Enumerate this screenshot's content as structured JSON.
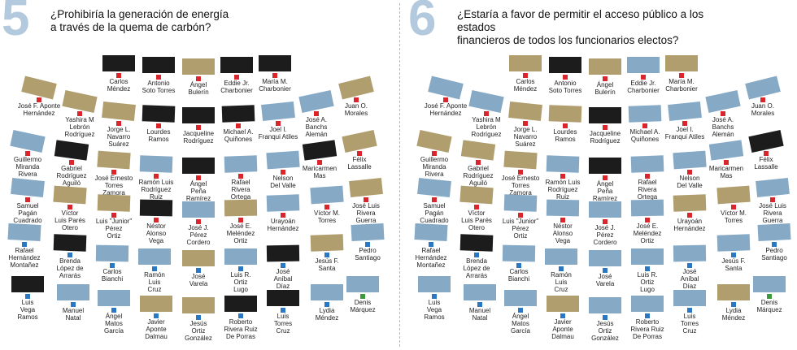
{
  "colors": {
    "favor": "#b09e6e",
    "contra": "#1c1c1c",
    "indeciso": "#86a9c6",
    "dot_ppd": "#2a78c4",
    "dot_pnp": "#d8262c",
    "dot_pip": "#3e9a3a",
    "question_number": "#b3c9dd"
  },
  "legislators": [
    {
      "name": "Carlos\nMéndez",
      "party": "pnp"
    },
    {
      "name": "Antonio\nSoto Torres",
      "party": "pnp"
    },
    {
      "name": "Ángel\nBulerín",
      "party": "pnp"
    },
    {
      "name": "Eddie Jr.\nCharbonier",
      "party": "pnp"
    },
    {
      "name": "María M.\nCharbonier",
      "party": "pnp"
    },
    {
      "name": "José F. Aponte\nHernández",
      "party": "pnp"
    },
    {
      "name": "Yashira M\nLebrón\nRodríguez",
      "party": "pnp"
    },
    {
      "name": "Jorge L.\nNavarro\nSuárez",
      "party": "pnp"
    },
    {
      "name": "Lourdes\nRamos",
      "party": "pnp"
    },
    {
      "name": "Jacqueline\nRodríguez",
      "party": "pnp"
    },
    {
      "name": "Michael A.\nQuiñones",
      "party": "pnp"
    },
    {
      "name": "Joel I.\nFranqui Atiles",
      "party": "pnp"
    },
    {
      "name": "José A.\nBanchs\nAlemán",
      "party": "pnp"
    },
    {
      "name": "Juan O.\nMorales",
      "party": "pnp"
    },
    {
      "name": "Guillermo\nMiranda\nRivera",
      "party": "pnp"
    },
    {
      "name": "Gabriel\nRodríguez\nAguiló",
      "party": "pnp"
    },
    {
      "name": "José Ernesto\nTorres\nZamora",
      "party": "pnp"
    },
    {
      "name": "Ramón Luis\nRodríguez\nRuiz",
      "party": "pnp"
    },
    {
      "name": "Ángel\nPeña\nRamírez",
      "party": "pnp"
    },
    {
      "name": "Rafael\nRivera\nOrtega",
      "party": "pnp"
    },
    {
      "name": "Nelson\nDel Valle",
      "party": "pnp"
    },
    {
      "name": "Maricarmen\nMas",
      "party": "pnp"
    },
    {
      "name": "Félix\nLassalle",
      "party": "pnp"
    },
    {
      "name": "Samuel\nPagán\nCuadrado",
      "party": "pnp"
    },
    {
      "name": "Víctor\nLuis Parés\nOtero",
      "party": "pnp"
    },
    {
      "name": "Luis \"Junior\"\nPérez\nOrtiz",
      "party": "pnp"
    },
    {
      "name": "Néstor\nAlonso\nVega",
      "party": "pnp"
    },
    {
      "name": "José J.\nPérez\nCordero",
      "party": "pnp"
    },
    {
      "name": "José E.\nMeléndez\nOrtiz",
      "party": "pnp"
    },
    {
      "name": "Urayoán\nHernández",
      "party": "pnp"
    },
    {
      "name": "Víctor M.\nTorres",
      "party": "pnp"
    },
    {
      "name": "José Luis\nRivera\nGuerra",
      "party": "pnp"
    },
    {
      "name": "Rafael\nHernández\nMontañez",
      "party": "ppd"
    },
    {
      "name": "Brenda\nLópez de\nArrarás",
      "party": "ppd"
    },
    {
      "name": "Carlos\nBianchi",
      "party": "ppd"
    },
    {
      "name": "Ramón\nLuis\nCruz",
      "party": "ppd"
    },
    {
      "name": "José\nVarela",
      "party": "ppd"
    },
    {
      "name": "Luis R.\nOrtiz\nLugo",
      "party": "ppd"
    },
    {
      "name": "José\nAníbal\nDíaz",
      "party": "ppd"
    },
    {
      "name": "Jesús F.\nSanta",
      "party": "ppd"
    },
    {
      "name": "Pedro\nSantiago",
      "party": "ppd"
    },
    {
      "name": "Luis\nVega\nRamos",
      "party": "ppd"
    },
    {
      "name": "Manuel\nNatal",
      "party": "ppd"
    },
    {
      "name": "Ángel\nMatos\nGarcía",
      "party": "ppd"
    },
    {
      "name": "Javier\nAponte\nDalmau",
      "party": "ppd"
    },
    {
      "name": "Jesús\nOrtiz\nGonzález",
      "party": "ppd"
    },
    {
      "name": "Roberto\nRivera Ruiz\nDe Porras",
      "party": "ppd"
    },
    {
      "name": "Luis\nTorres\nCruz",
      "party": "ppd"
    },
    {
      "name": "Lydia\nMéndez",
      "party": "ppd"
    },
    {
      "name": "Denis\nMárquez",
      "party": "pip"
    }
  ],
  "questions": [
    {
      "number": "5",
      "text": "¿Prohibiría la generación de energía\na través de la quema de carbón?",
      "votes": [
        "contra",
        "contra",
        "favor",
        "contra",
        "contra",
        "favor",
        "favor",
        "favor",
        "contra",
        "contra",
        "contra",
        "indeciso",
        "indeciso",
        "favor",
        "indeciso",
        "contra",
        "favor",
        "indeciso",
        "contra",
        "indeciso",
        "indeciso",
        "contra",
        "favor",
        "indeciso",
        "favor",
        "favor",
        "contra",
        "indeciso",
        "favor",
        "indeciso",
        "indeciso",
        "favor",
        "indeciso",
        "contra",
        "indeciso",
        "indeciso",
        "favor",
        "indeciso",
        "contra",
        "favor",
        "indeciso",
        "contra",
        "indeciso",
        "indeciso",
        "favor",
        "favor",
        "contra",
        "contra",
        "indeciso",
        "indeciso"
      ]
    },
    {
      "number": "6",
      "text": "¿Estaría a favor de permitir el acceso público a los estados\nfinancieros de todos los funcionarios electos?",
      "votes": [
        "favor",
        "contra",
        "favor",
        "indeciso",
        "favor",
        "indeciso",
        "indeciso",
        "favor",
        "favor",
        "contra",
        "indeciso",
        "indeciso",
        "indeciso",
        "indeciso",
        "favor",
        "favor",
        "favor",
        "indeciso",
        "contra",
        "indeciso",
        "indeciso",
        "indeciso",
        "contra",
        "indeciso",
        "favor",
        "indeciso",
        "indeciso",
        "indeciso",
        "indeciso",
        "favor",
        "favor",
        "indeciso",
        "indeciso",
        "contra",
        "indeciso",
        "indeciso",
        "indeciso",
        "indeciso",
        "indeciso",
        "indeciso",
        "indeciso",
        "indeciso",
        "indeciso",
        "indeciso",
        "favor",
        "indeciso",
        "indeciso",
        "indeciso",
        "favor",
        "indeciso"
      ]
    }
  ]
}
